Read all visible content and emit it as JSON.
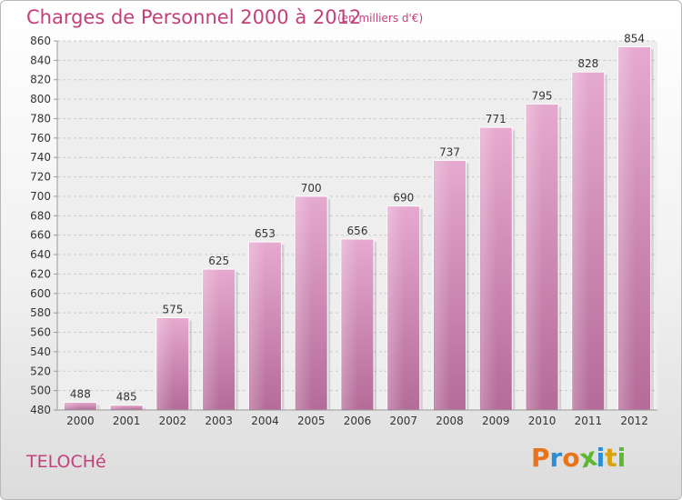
{
  "chart_data": {
    "type": "bar",
    "title": "Charges de Personnel 2000 à 2012",
    "subtitle": "(en milliers d'€)",
    "categories": [
      "2000",
      "2001",
      "2002",
      "2003",
      "2004",
      "2005",
      "2006",
      "2007",
      "2008",
      "2009",
      "2010",
      "2011",
      "2012"
    ],
    "values": [
      488,
      485,
      575,
      625,
      653,
      700,
      656,
      690,
      737,
      771,
      795,
      828,
      854
    ],
    "ylim": [
      480,
      860
    ],
    "yticks": [
      480,
      500,
      520,
      540,
      560,
      580,
      600,
      620,
      640,
      660,
      680,
      700,
      720,
      740,
      760,
      780,
      800,
      820,
      840,
      860
    ],
    "grid": true,
    "bar_color": "#d98bb6"
  },
  "footer": {
    "place": "TELOCHé"
  },
  "logo": {
    "letters": [
      "P",
      "r",
      "o",
      "x",
      "i",
      "t",
      "i"
    ],
    "colors": [
      "#e8731a",
      "#2c8fd6",
      "#e8731a",
      "#5cb82e",
      "#2c8fd6",
      "#d9a40f",
      "#5cb82e"
    ]
  }
}
